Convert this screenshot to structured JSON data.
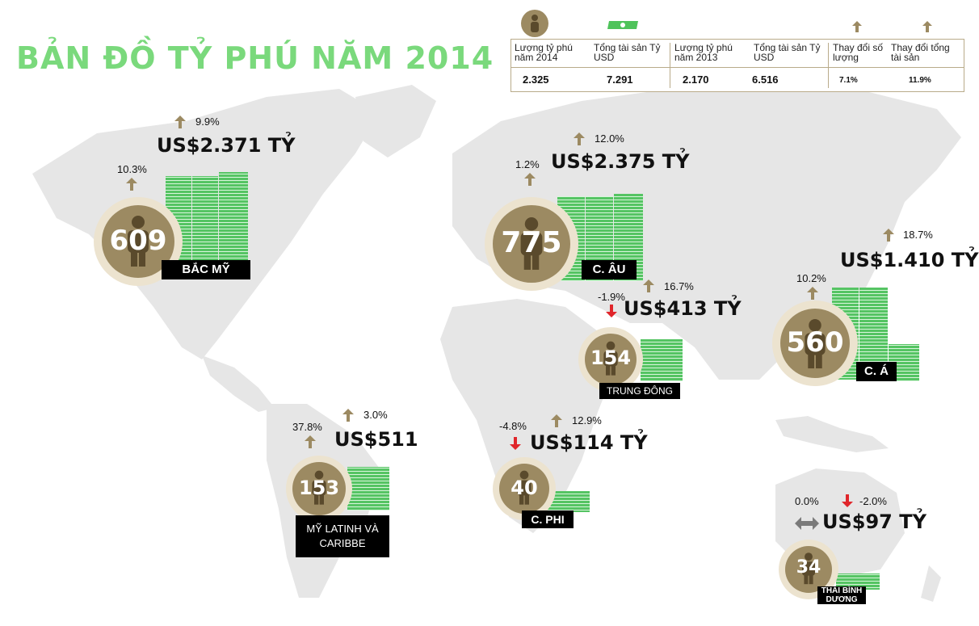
{
  "title": "BẢN ĐỒ TỶ PHÚ NĂM 2014",
  "colors": {
    "title_green": "#7ad97c",
    "badge_tan": "#9c8a62",
    "badge_ring": "#ece3cf",
    "map_gray": "#e6e6e6",
    "arrow_up": "#9c8a62",
    "arrow_down": "#e0262b",
    "money_green": "#4ec35a"
  },
  "summary": {
    "headers": [
      "Lượng tỷ phú năm 2014",
      "Tổng tài sản Tỷ USD",
      "Lượng tỷ phú năm 2013",
      "Tổng tài sản Tỷ USD",
      "Thay đổi số lượng",
      "Thay đổi tổng tài sản"
    ],
    "values": [
      "2.325",
      "7.291",
      "2.170",
      "6.516",
      "7.1%",
      "11.9%"
    ]
  },
  "regions": {
    "north_america": {
      "label": "BẮC MỸ",
      "count": "609",
      "count_change": "10.3%",
      "wealth_change": "9.9%",
      "wealth": "US$2.371 TỶ"
    },
    "europe": {
      "label": "C. ÂU",
      "count": "775",
      "count_change": "1.2%",
      "wealth_change": "12.0%",
      "wealth": "US$2.375 TỶ"
    },
    "middle_east": {
      "label": "TRUNG ĐÔNG",
      "count": "154",
      "count_change": "-1.9%",
      "wealth_change": "16.7%",
      "wealth": "US$413 TỶ"
    },
    "asia": {
      "label": "C. Á",
      "count": "560",
      "count_change": "10.2%",
      "wealth_change": "18.7%",
      "wealth": "US$1.410 TỶ"
    },
    "latin_america": {
      "label": "MỸ LATINH VÀ CARIBBE",
      "count": "153",
      "count_change": "37.8%",
      "wealth_change": "3.0%",
      "wealth": "US$511"
    },
    "africa": {
      "label": "C. PHI",
      "count": "40",
      "count_change": "-4.8%",
      "wealth_change": "12.9%",
      "wealth": "US$114 TỶ"
    },
    "pacific": {
      "label": "THÁI BÌNH DƯƠNG",
      "count": "34",
      "count_change": "0.0%",
      "wealth_change": "-2.0%",
      "wealth": "US$97 TỶ"
    }
  }
}
